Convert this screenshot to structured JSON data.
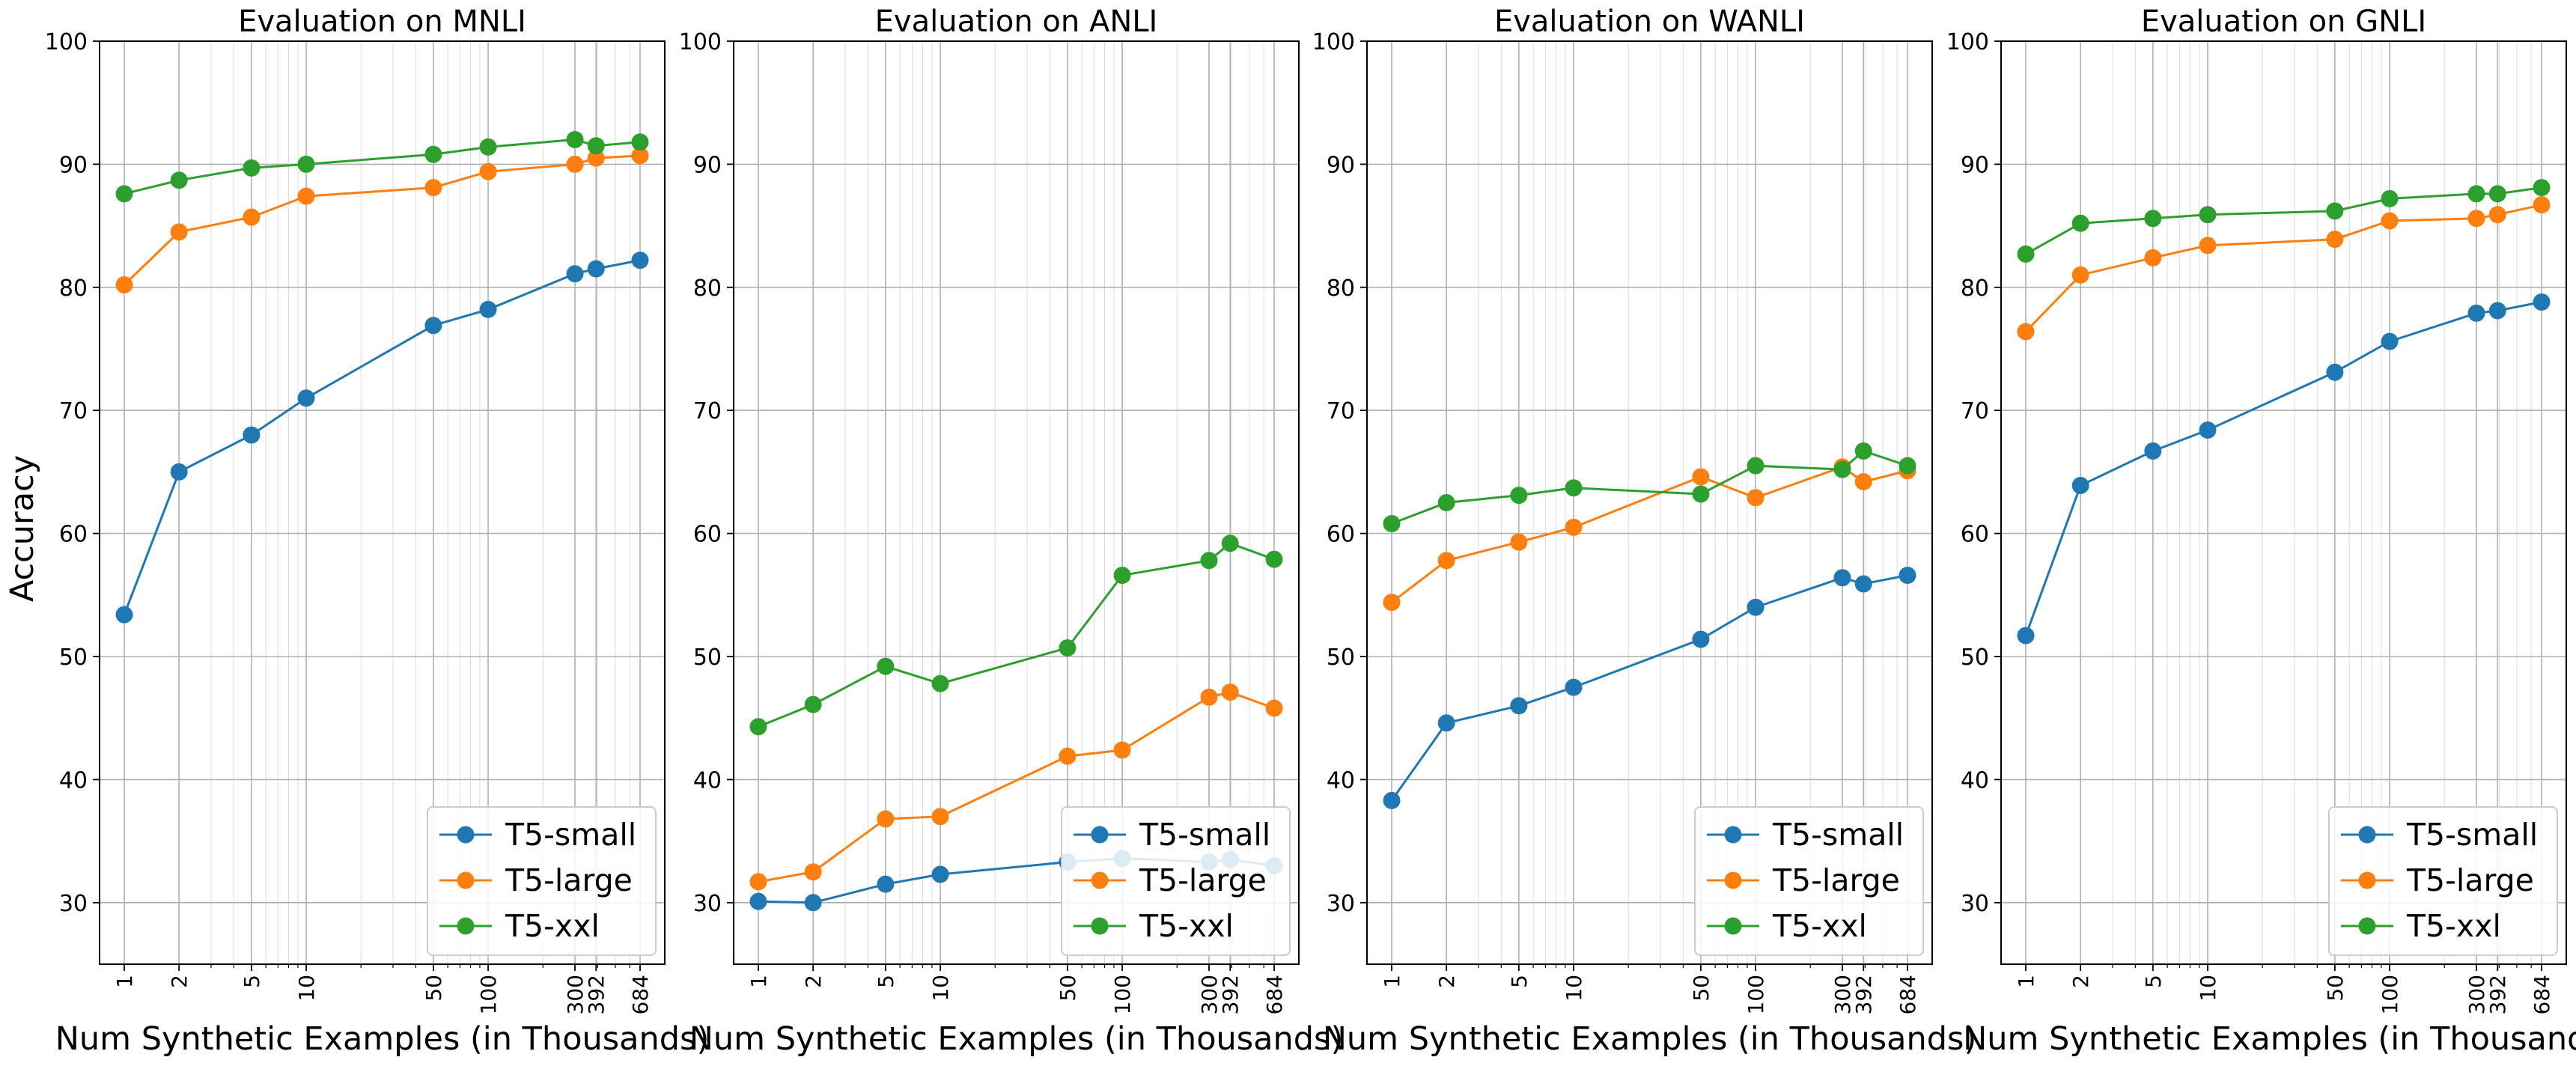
{
  "figure": {
    "ylabel": "Accuracy"
  },
  "chart_data": [
    {
      "type": "line",
      "title": "Evaluation on MNLI",
      "xlabel": "Num Synthetic Examples (in Thousands)",
      "ylabel": "Accuracy",
      "xscale": "log",
      "xticks": [
        1,
        2,
        5,
        10,
        50,
        100,
        300,
        392,
        684
      ],
      "xtick_labels": [
        "1",
        "2",
        "5",
        "10",
        "50",
        "100",
        "300",
        "392",
        "684"
      ],
      "ylim": [
        25,
        100
      ],
      "yticks": [
        30,
        40,
        50,
        60,
        70,
        80,
        90,
        100
      ],
      "grid": true,
      "legend_position": "lower right",
      "series": [
        {
          "name": "T5-small",
          "color": "#1f77b4",
          "x": [
            1,
            2,
            5,
            10,
            50,
            100,
            300,
            392,
            684
          ],
          "y": [
            53.4,
            65.0,
            68.0,
            71.0,
            76.9,
            78.2,
            81.1,
            81.5,
            82.2
          ]
        },
        {
          "name": "T5-large",
          "color": "#ff7f0e",
          "x": [
            1,
            2,
            5,
            10,
            50,
            100,
            300,
            392,
            684
          ],
          "y": [
            80.2,
            84.5,
            85.7,
            87.4,
            88.1,
            89.4,
            90.0,
            90.5,
            90.7
          ]
        },
        {
          "name": "T5-xxl",
          "color": "#2ca02c",
          "x": [
            1,
            2,
            5,
            10,
            50,
            100,
            300,
            392,
            684
          ],
          "y": [
            87.6,
            88.7,
            89.7,
            90.0,
            90.8,
            91.4,
            92.0,
            91.5,
            91.8
          ]
        }
      ]
    },
    {
      "type": "line",
      "title": "Evaluation on ANLI",
      "xlabel": "Num Synthetic Examples (in Thousands)",
      "xscale": "log",
      "xticks": [
        1,
        2,
        5,
        10,
        50,
        100,
        300,
        392,
        684
      ],
      "xtick_labels": [
        "1",
        "2",
        "5",
        "10",
        "50",
        "100",
        "300",
        "392",
        "684"
      ],
      "ylim": [
        25,
        100
      ],
      "yticks": [
        30,
        40,
        50,
        60,
        70,
        80,
        90,
        100
      ],
      "grid": true,
      "legend_position": "lower right",
      "series": [
        {
          "name": "T5-small",
          "color": "#1f77b4",
          "x": [
            1,
            2,
            5,
            10,
            50,
            100,
            300,
            392,
            684
          ],
          "y": [
            30.1,
            30.0,
            31.5,
            32.3,
            33.3,
            33.6,
            33.3,
            33.5,
            33.0
          ]
        },
        {
          "name": "T5-large",
          "color": "#ff7f0e",
          "x": [
            1,
            2,
            5,
            10,
            50,
            100,
            300,
            392,
            684
          ],
          "y": [
            31.7,
            32.5,
            36.8,
            37.0,
            41.9,
            42.4,
            46.7,
            47.1,
            45.8
          ]
        },
        {
          "name": "T5-xxl",
          "color": "#2ca02c",
          "x": [
            1,
            2,
            5,
            10,
            50,
            100,
            300,
            392,
            684
          ],
          "y": [
            44.3,
            46.1,
            49.2,
            47.8,
            50.7,
            56.6,
            57.8,
            59.2,
            57.9
          ]
        }
      ]
    },
    {
      "type": "line",
      "title": "Evaluation on WANLI",
      "xlabel": "Num Synthetic Examples (in Thousands)",
      "xscale": "log",
      "xticks": [
        1,
        2,
        5,
        10,
        50,
        100,
        300,
        392,
        684
      ],
      "xtick_labels": [
        "1",
        "2",
        "5",
        "10",
        "50",
        "100",
        "300",
        "392",
        "684"
      ],
      "ylim": [
        25,
        100
      ],
      "yticks": [
        30,
        40,
        50,
        60,
        70,
        80,
        90,
        100
      ],
      "grid": true,
      "legend_position": "lower right",
      "series": [
        {
          "name": "T5-small",
          "color": "#1f77b4",
          "x": [
            1,
            2,
            5,
            10,
            50,
            100,
            300,
            392,
            684
          ],
          "y": [
            38.3,
            44.6,
            46.0,
            47.5,
            51.4,
            54.0,
            56.4,
            55.9,
            56.6
          ]
        },
        {
          "name": "T5-large",
          "color": "#ff7f0e",
          "x": [
            1,
            2,
            5,
            10,
            50,
            100,
            300,
            392,
            684
          ],
          "y": [
            54.4,
            57.8,
            59.3,
            60.5,
            64.6,
            62.9,
            65.4,
            64.2,
            65.1
          ]
        },
        {
          "name": "T5-xxl",
          "color": "#2ca02c",
          "x": [
            1,
            2,
            5,
            10,
            50,
            100,
            300,
            392,
            684
          ],
          "y": [
            60.8,
            62.5,
            63.1,
            63.7,
            63.2,
            65.5,
            65.2,
            66.7,
            65.5
          ]
        }
      ]
    },
    {
      "type": "line",
      "title": "Evaluation on GNLI",
      "xlabel": "Num Synthetic Examples (in Thousands",
      "xscale": "log",
      "xticks": [
        1,
        2,
        5,
        10,
        50,
        100,
        300,
        392,
        684
      ],
      "xtick_labels": [
        "1",
        "2",
        "5",
        "10",
        "50",
        "100",
        "300",
        "392",
        "684"
      ],
      "ylim": [
        25,
        100
      ],
      "yticks": [
        30,
        40,
        50,
        60,
        70,
        80,
        90,
        100
      ],
      "grid": true,
      "legend_position": "lower right",
      "series": [
        {
          "name": "T5-small",
          "color": "#1f77b4",
          "x": [
            1,
            2,
            5,
            10,
            50,
            100,
            300,
            392,
            684
          ],
          "y": [
            51.7,
            63.9,
            66.7,
            68.4,
            73.1,
            75.6,
            77.9,
            78.1,
            78.8
          ]
        },
        {
          "name": "T5-large",
          "color": "#ff7f0e",
          "x": [
            1,
            2,
            5,
            10,
            50,
            100,
            300,
            392,
            684
          ],
          "y": [
            76.4,
            81.0,
            82.4,
            83.4,
            83.9,
            85.4,
            85.6,
            85.9,
            86.7
          ]
        },
        {
          "name": "T5-xxl",
          "color": "#2ca02c",
          "x": [
            1,
            2,
            5,
            10,
            50,
            100,
            300,
            392,
            684
          ],
          "y": [
            82.7,
            85.2,
            85.6,
            85.9,
            86.2,
            87.2,
            87.6,
            87.6,
            88.1
          ]
        }
      ]
    }
  ]
}
